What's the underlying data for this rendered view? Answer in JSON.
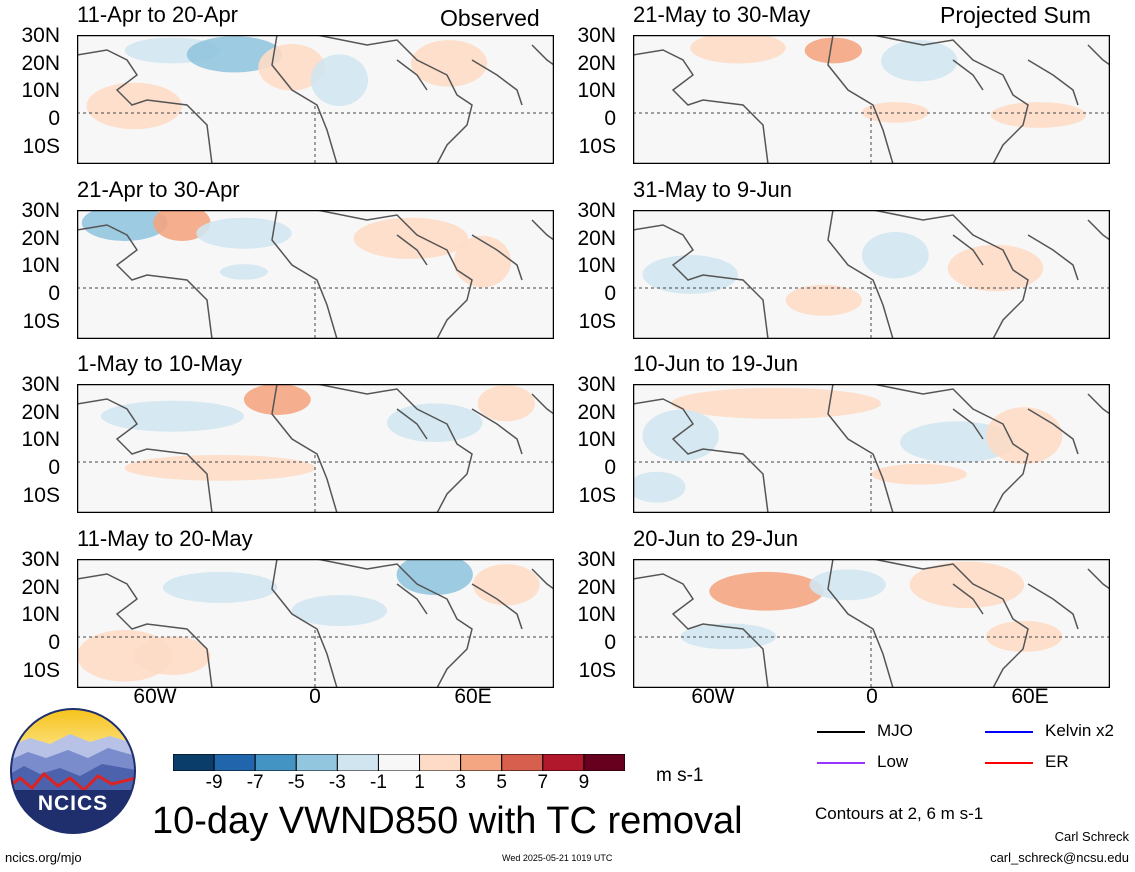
{
  "headers": {
    "left": "Observed",
    "right": "Projected Sum"
  },
  "panels": [
    {
      "title": "11-Apr to 20-Apr"
    },
    {
      "title": "21-Apr to 30-Apr"
    },
    {
      "title": "1-May to 10-May"
    },
    {
      "title": "11-May to 20-May"
    },
    {
      "title": "21-May to 30-May"
    },
    {
      "title": "31-May to 9-Jun"
    },
    {
      "title": "10-Jun to 19-Jun"
    },
    {
      "title": "20-Jun to 29-Jun"
    }
  ],
  "lat_labels": [
    "30N",
    "20N",
    "10N",
    "0",
    "10S"
  ],
  "lon_labels": [
    "60W",
    "0",
    "60E"
  ],
  "colorbar": {
    "labels": [
      "-9",
      "-7",
      "-5",
      "-3",
      "-1",
      "1",
      "3",
      "5",
      "7",
      "9"
    ],
    "colors": [
      "#0b3d6b",
      "#2166ac",
      "#4393c3",
      "#92c5de",
      "#d1e5f0",
      "#f7f7f7",
      "#fddbc7",
      "#f4a582",
      "#d6604d",
      "#b2182b",
      "#67001f"
    ],
    "units": "m s-1"
  },
  "legend": {
    "mjo": {
      "label": "MJO",
      "color": "#000000"
    },
    "low": {
      "label": "Low",
      "color": "#9933ff"
    },
    "kelvin": {
      "label": "Kelvin x2",
      "color": "#0000ff"
    },
    "er": {
      "label": "ER",
      "color": "#ff0000"
    }
  },
  "title": "10-day VWND850 with TC removal",
  "contours_note": "Contours at 2, 6 m s-1",
  "logo_text": "NCICS",
  "footer": {
    "url": "ncics.org/mjo",
    "timestamp": "Wed 2025-05-21 1019 UTC",
    "author": "Carl Schreck",
    "email": "carl_schreck@ncsu.edu"
  }
}
